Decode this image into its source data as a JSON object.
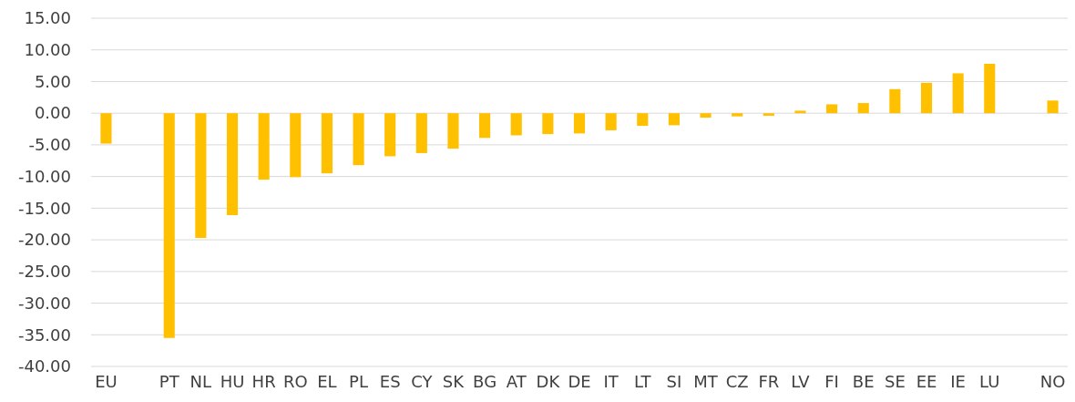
{
  "chart_data": {
    "type": "bar",
    "categories": [
      "EU",
      null,
      "PT",
      "NL",
      "HU",
      "HR",
      "RO",
      "EL",
      "PL",
      "ES",
      "CY",
      "SK",
      "BG",
      "AT",
      "DK",
      "DE",
      "IT",
      "LT",
      "SI",
      "MT",
      "CZ",
      "FR",
      "LV",
      "FI",
      "BE",
      "SE",
      "EE",
      "IE",
      "LU",
      null,
      "NO"
    ],
    "values": [
      -4.8,
      null,
      -35.5,
      -19.7,
      -16.1,
      -10.5,
      -10.1,
      -9.5,
      -8.2,
      -6.8,
      -6.3,
      -5.6,
      -3.9,
      -3.5,
      -3.3,
      -3.2,
      -2.7,
      -2.0,
      -1.9,
      -0.7,
      -0.5,
      -0.4,
      0.4,
      1.4,
      1.6,
      3.8,
      4.8,
      6.3,
      7.8,
      null,
      2.0
    ],
    "color": "#ffc000",
    "ylim": [
      -40,
      15
    ],
    "yticks": [
      {
        "value": -40,
        "label": "-40.00"
      },
      {
        "value": -35,
        "label": "-35.00"
      },
      {
        "value": -30,
        "label": "-30.00"
      },
      {
        "value": -25,
        "label": "-25.00"
      },
      {
        "value": -20,
        "label": "-20.00"
      },
      {
        "value": -15,
        "label": "-15.00"
      },
      {
        "value": -10,
        "label": "-10.00"
      },
      {
        "value": -5,
        "label": "-5.00"
      },
      {
        "value": 0,
        "label": "0.00"
      },
      {
        "value": 5,
        "label": "5.00"
      },
      {
        "value": 10,
        "label": "10.00"
      },
      {
        "value": 15,
        "label": "15.00"
      }
    ],
    "grid": "y"
  }
}
